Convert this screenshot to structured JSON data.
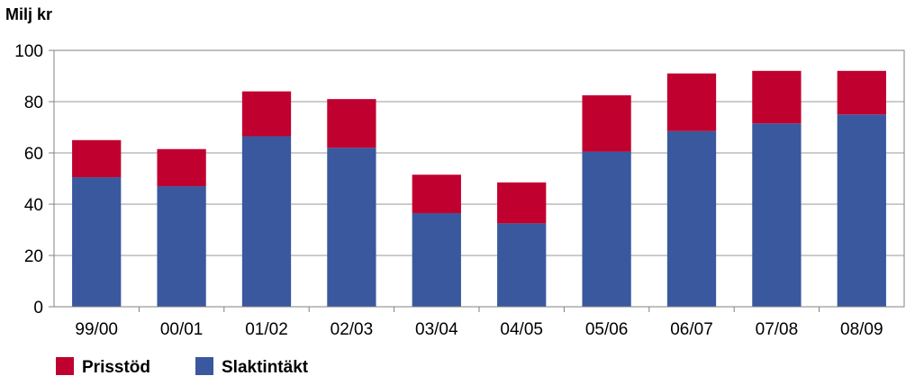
{
  "chart_data": {
    "type": "bar",
    "stacked": true,
    "title": "",
    "ylabel": "Milj kr",
    "xlabel": "",
    "categories": [
      "99/00",
      "00/01",
      "01/02",
      "02/03",
      "03/04",
      "04/05",
      "05/06",
      "06/07",
      "07/08",
      "08/09"
    ],
    "series": [
      {
        "name": "Slaktintäkt",
        "color": "#3A589E",
        "values": [
          50.5,
          47,
          66.5,
          62,
          36.5,
          32.5,
          60.5,
          68.5,
          71.5,
          75
        ]
      },
      {
        "name": "Prisstöd",
        "color": "#C0002F",
        "values": [
          14.5,
          14.5,
          17.5,
          19,
          15,
          16,
          22,
          22.5,
          20.5,
          17
        ]
      }
    ],
    "ylim": [
      0,
      100
    ],
    "yticks": [
      0,
      20,
      40,
      60,
      80,
      100
    ],
    "grid": true,
    "legend": {
      "position": "bottom-left",
      "items": [
        "Prisstöd",
        "Slaktintäkt"
      ]
    }
  }
}
